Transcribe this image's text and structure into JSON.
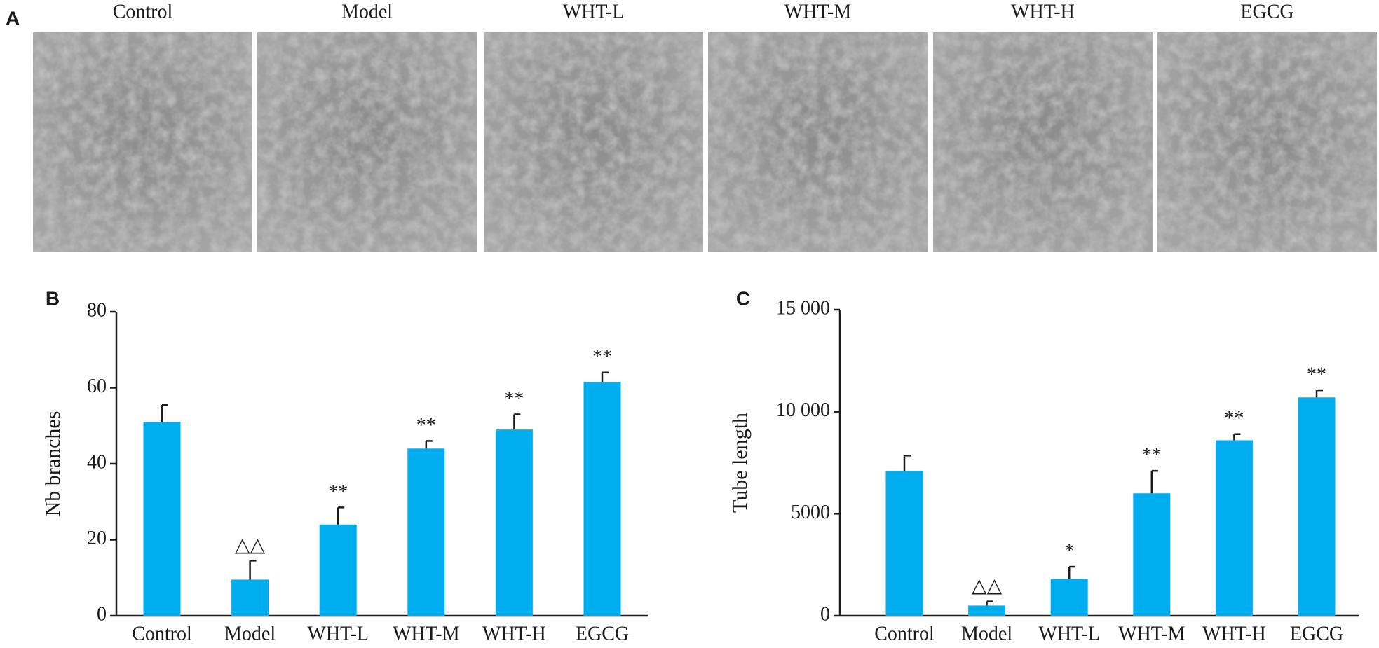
{
  "panel_a": {
    "letter": "A",
    "groups": [
      "Control",
      "Model",
      "WHT-L",
      "WHT-M",
      "WHT-H",
      "EGCG"
    ]
  },
  "chart_data": [
    {
      "type": "bar",
      "panel": "B",
      "ylabel": "Nb branches",
      "color": "#00aeef",
      "categories": [
        "Control",
        "Model",
        "WHT-L",
        "WHT-M",
        "WHT-H",
        "EGCG"
      ],
      "values": [
        51,
        9.5,
        24,
        44,
        49,
        61.5
      ],
      "errors": [
        4.5,
        5,
        4.5,
        2,
        4,
        2.5
      ],
      "significance": [
        null,
        "△△",
        "**",
        "**",
        "**",
        "**"
      ],
      "ylim": [
        0,
        80
      ],
      "yticks": [
        0,
        20,
        40,
        60,
        80
      ]
    },
    {
      "type": "bar",
      "panel": "C",
      "ylabel": "Tube length",
      "color": "#00aeef",
      "categories": [
        "Control",
        "Model",
        "WHT-L",
        "WHT-M",
        "WHT-H",
        "EGCG"
      ],
      "values": [
        7100,
        500,
        1800,
        6000,
        8600,
        10700
      ],
      "errors": [
        750,
        200,
        600,
        1100,
        300,
        350
      ],
      "significance": [
        null,
        "△△",
        "*",
        "**",
        "**",
        "**"
      ],
      "ylim": [
        0,
        15000
      ],
      "yticks": [
        0,
        5000,
        {
          "value": 10000,
          "label": "10 000"
        },
        {
          "value": 15000,
          "label": "15 000"
        }
      ]
    }
  ]
}
